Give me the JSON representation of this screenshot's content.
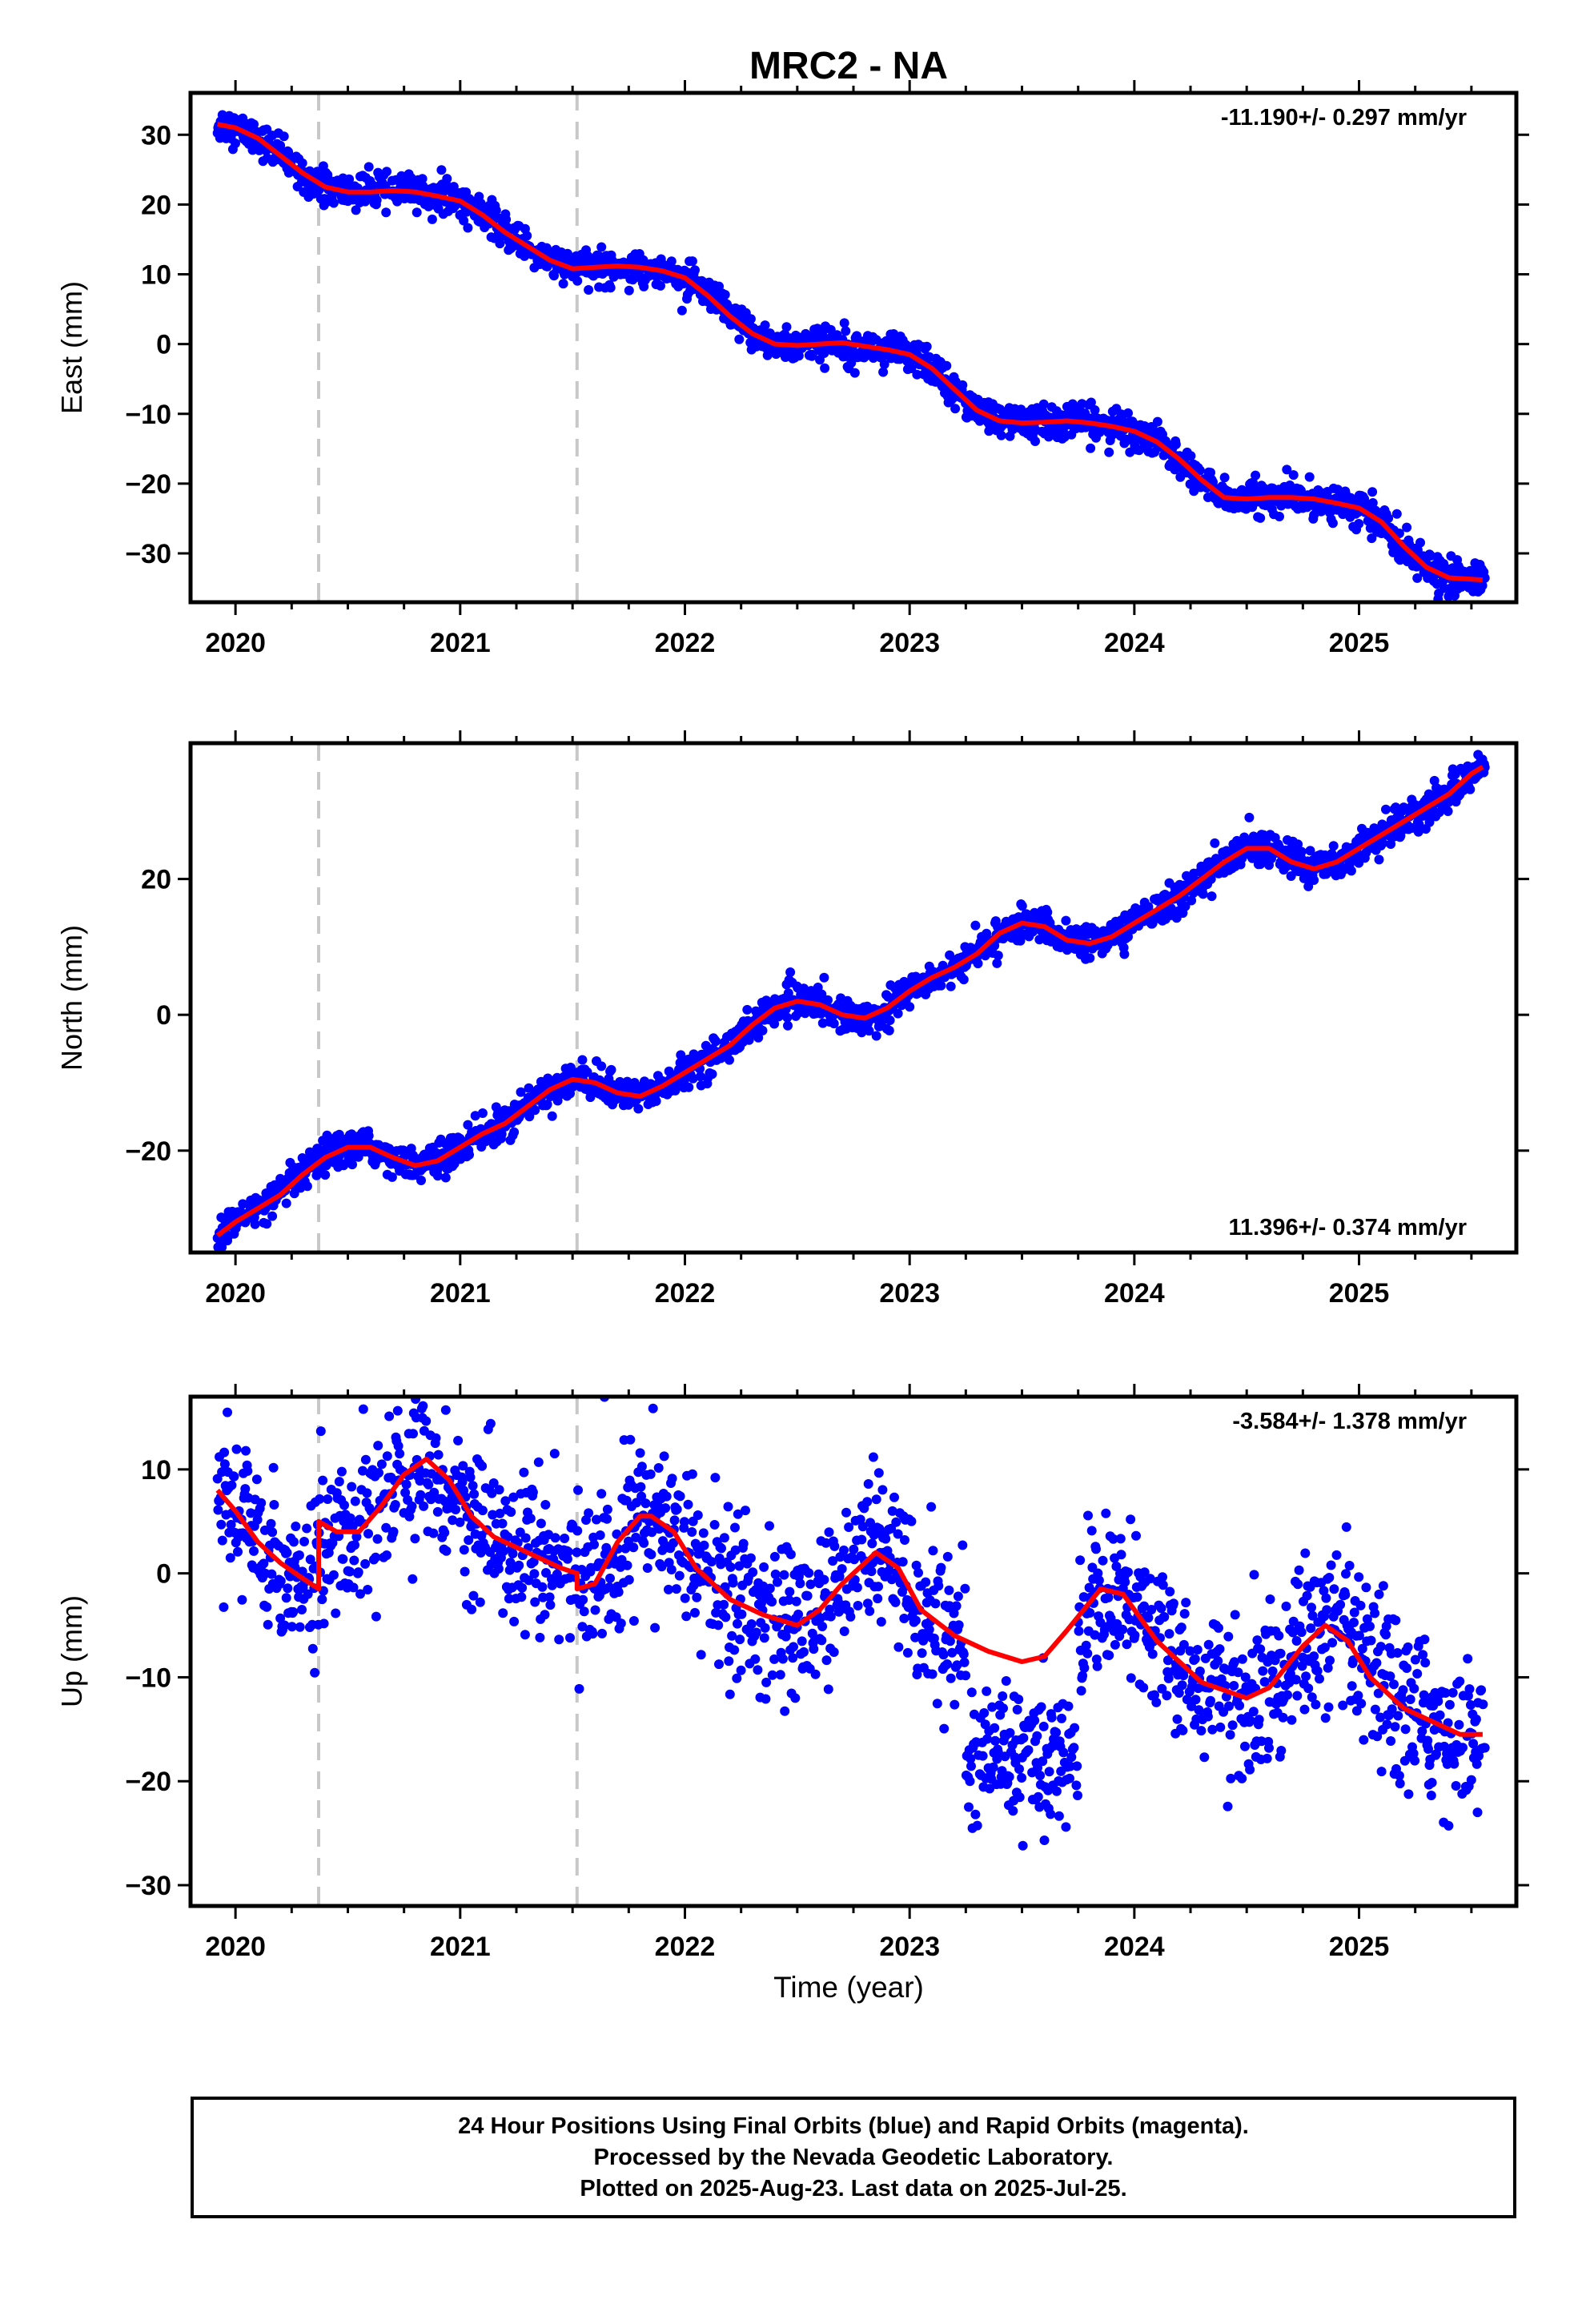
{
  "title": "MRC2 - NA",
  "xlabel": "Time (year)",
  "footer": {
    "line1": "24 Hour Positions Using Final Orbits (blue) and Rapid Orbits (magenta).",
    "line2": "Processed by the Nevada Geodetic Laboratory.",
    "line3": "Plotted on 2025-Aug-23. Last data on 2025-Jul-25."
  },
  "colors": {
    "points": "#0000ff",
    "fit": "#ff0000",
    "event_lines": "#c8c8c8",
    "frame": "#000000"
  },
  "chart_data": [
    {
      "type": "scatter",
      "panel": "east",
      "ylabel": "East (mm)",
      "rate_label": "-11.190+/- 0.297 mm/yr",
      "rate_position": "top-right",
      "xlim": [
        2019.8,
        2025.7
      ],
      "ylim": [
        -37,
        36
      ],
      "x_ticks": [
        2020,
        2021,
        2022,
        2023,
        2024,
        2025
      ],
      "y_ticks": [
        30,
        20,
        10,
        0,
        -10,
        -20,
        -30
      ],
      "y_tick_labels": [
        "30",
        "20",
        "10",
        "0",
        "−10",
        "−20",
        "−30"
      ],
      "event_lines": [
        2020.37,
        2021.52
      ],
      "grid": false,
      "noise_mm": 1.2,
      "series": [
        {
          "role": "fit",
          "x": [
            2019.92,
            2020.0,
            2020.1,
            2020.2,
            2020.3,
            2020.4,
            2020.5,
            2020.6,
            2020.7,
            2020.8,
            2020.9,
            2021.0,
            2021.1,
            2021.2,
            2021.3,
            2021.4,
            2021.5,
            2021.6,
            2021.7,
            2021.8,
            2021.9,
            2022.0,
            2022.1,
            2022.2,
            2022.3,
            2022.4,
            2022.5,
            2022.6,
            2022.7,
            2022.8,
            2022.9,
            2023.0,
            2023.1,
            2023.2,
            2023.3,
            2023.4,
            2023.5,
            2023.6,
            2023.7,
            2023.8,
            2023.9,
            2024.0,
            2024.1,
            2024.2,
            2024.3,
            2024.4,
            2024.5,
            2024.6,
            2024.7,
            2024.8,
            2024.9,
            2025.0,
            2025.1,
            2025.2,
            2025.3,
            2025.4,
            2025.5,
            2025.55
          ],
          "y": [
            31.5,
            31,
            29.5,
            27,
            24.5,
            22.5,
            21.8,
            21.8,
            22,
            21.8,
            21.2,
            20.5,
            18.5,
            16,
            14,
            12,
            10.8,
            11,
            11.2,
            11,
            10.5,
            9.5,
            7,
            4,
            1.5,
            0,
            -0.2,
            0,
            0.2,
            -0.3,
            -0.8,
            -1.5,
            -3.5,
            -6.5,
            -9.5,
            -11,
            -11.3,
            -11.2,
            -11,
            -11.3,
            -11.8,
            -12.5,
            -14,
            -16.5,
            -19.5,
            -22,
            -22.2,
            -22,
            -22,
            -22.2,
            -22.8,
            -23.5,
            -25.5,
            -29,
            -32,
            -33.5,
            -33.7,
            -33.8
          ]
        }
      ]
    },
    {
      "type": "scatter",
      "panel": "north",
      "ylabel": "North (mm)",
      "rate_label": "11.396+/- 0.374 mm/yr",
      "rate_position": "bottom-right",
      "xlim": [
        2019.8,
        2025.7
      ],
      "ylim": [
        -35,
        40
      ],
      "x_ticks": [
        2020,
        2021,
        2022,
        2023,
        2024,
        2025
      ],
      "y_ticks": [
        20,
        0,
        -20
      ],
      "y_tick_labels": [
        "20",
        "0",
        "−20"
      ],
      "event_lines": [
        2020.37,
        2021.52
      ],
      "grid": false,
      "noise_mm": 1.2,
      "series": [
        {
          "role": "fit",
          "x": [
            2019.92,
            2020.0,
            2020.1,
            2020.2,
            2020.3,
            2020.4,
            2020.5,
            2020.6,
            2020.7,
            2020.8,
            2020.9,
            2021.0,
            2021.1,
            2021.2,
            2021.3,
            2021.4,
            2021.5,
            2021.6,
            2021.7,
            2021.8,
            2021.9,
            2022.0,
            2022.1,
            2022.2,
            2022.3,
            2022.4,
            2022.5,
            2022.6,
            2022.7,
            2022.8,
            2022.9,
            2023.0,
            2023.1,
            2023.2,
            2023.3,
            2023.4,
            2023.5,
            2023.6,
            2023.7,
            2023.8,
            2023.9,
            2024.0,
            2024.1,
            2024.2,
            2024.3,
            2024.4,
            2024.5,
            2024.6,
            2024.7,
            2024.8,
            2024.9,
            2025.0,
            2025.1,
            2025.2,
            2025.3,
            2025.4,
            2025.5,
            2025.55
          ],
          "y": [
            -32.5,
            -30.5,
            -28.5,
            -26.5,
            -23.5,
            -21,
            -19.5,
            -19.5,
            -21,
            -22.2,
            -21.5,
            -19.5,
            -17.5,
            -16,
            -13.5,
            -11,
            -9.5,
            -10,
            -11.5,
            -12,
            -10.5,
            -8.5,
            -6.5,
            -4.5,
            -1.5,
            1,
            2,
            1.5,
            0,
            -0.5,
            1,
            3.5,
            5.5,
            7,
            9,
            12,
            13.5,
            13,
            11,
            10.5,
            11.5,
            13.5,
            15.5,
            17.5,
            20,
            22.5,
            24.5,
            24.5,
            22.5,
            21.5,
            22.5,
            24.5,
            26.5,
            28.5,
            30.5,
            32.5,
            35.5,
            36.5
          ]
        }
      ]
    },
    {
      "type": "scatter",
      "panel": "up",
      "ylabel": "Up (mm)",
      "rate_label": "-3.584+/- 1.378 mm/yr",
      "rate_position": "top-right",
      "xlabel": "Time (year)",
      "xlim": [
        2019.8,
        2025.7
      ],
      "ylim": [
        -32,
        17
      ],
      "x_ticks": [
        2020,
        2021,
        2022,
        2023,
        2024,
        2025
      ],
      "y_ticks": [
        10,
        0,
        -10,
        -20,
        -30
      ],
      "y_tick_labels": [
        "10",
        "0",
        "−10",
        "−20",
        "−30"
      ],
      "event_lines": [
        2020.37,
        2021.52
      ],
      "grid": false,
      "noise_mm": 3.8,
      "series": [
        {
          "role": "fit",
          "x": [
            2019.92,
            2020.0,
            2020.1,
            2020.2,
            2020.3,
            2020.37,
            2020.37,
            2020.45,
            2020.55,
            2020.65,
            2020.75,
            2020.85,
            2020.95,
            2021.05,
            2021.15,
            2021.3,
            2021.45,
            2021.52,
            2021.52,
            2021.6,
            2021.7,
            2021.8,
            2021.85,
            2021.95,
            2022.05,
            2022.2,
            2022.35,
            2022.5,
            2022.6,
            2022.7,
            2022.85,
            2022.95,
            2023.05,
            2023.2,
            2023.35,
            2023.5,
            2023.6,
            2023.7,
            2023.85,
            2023.95,
            2024.1,
            2024.3,
            2024.5,
            2024.6,
            2024.75,
            2024.85,
            2024.95,
            2025.05,
            2025.2,
            2025.35,
            2025.45,
            2025.55
          ],
          "y": [
            8,
            6,
            3,
            1,
            -0.5,
            -1.5,
            5,
            4,
            4,
            6.5,
            9.5,
            11,
            9,
            5.5,
            3.5,
            2,
            0.5,
            0,
            -1.5,
            -1,
            3,
            5.5,
            5.5,
            4,
            0.5,
            -2.5,
            -4,
            -5,
            -3.5,
            -1,
            2,
            0.5,
            -3.5,
            -6,
            -7.5,
            -8.5,
            -8,
            -5.5,
            -1.5,
            -2,
            -6.5,
            -10.5,
            -12,
            -11,
            -7,
            -5,
            -6.5,
            -10,
            -13,
            -14.5,
            -15.5,
            -15.5
          ]
        }
      ],
      "dip_2023": {
        "x_range": [
          2023.25,
          2023.75
        ],
        "center": -17.5
      }
    }
  ]
}
